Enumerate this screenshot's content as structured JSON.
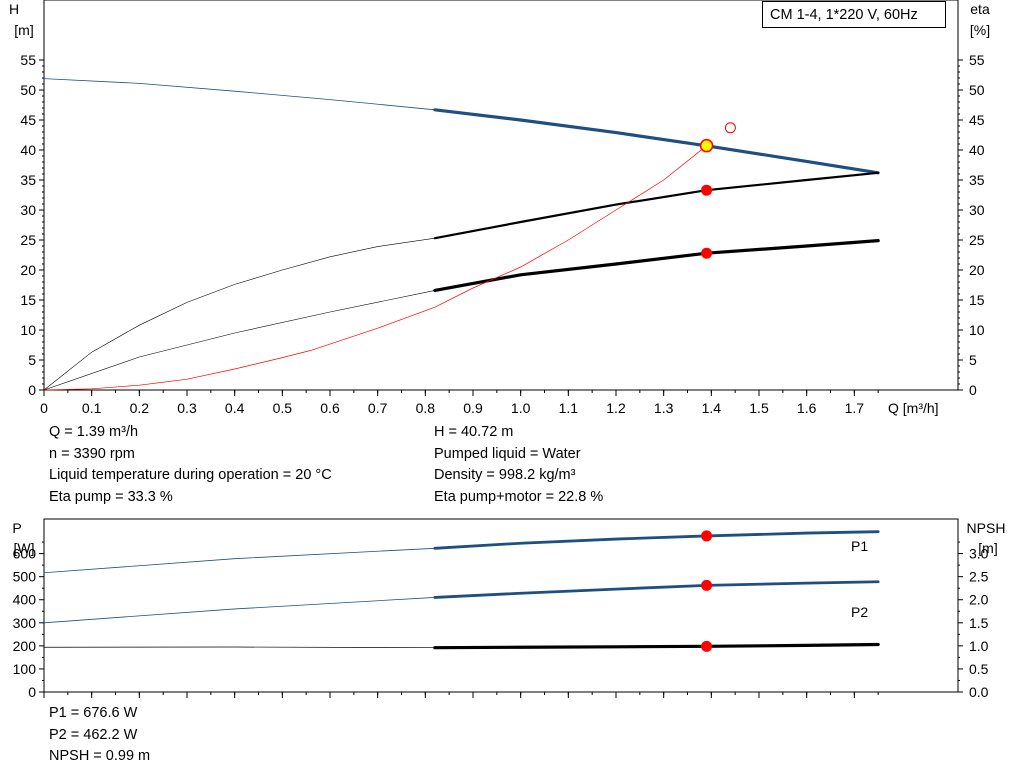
{
  "legend": {
    "title": "CM 1-4, 1*220 V, 60Hz"
  },
  "info_top": {
    "left": [
      "Q = 1.39 m³/h",
      "n = 3390 rpm",
      "Liquid temperature during operation = 20 °C",
      "Eta pump = 33.3 %"
    ],
    "right": [
      "H = 40.72 m",
      "Pumped liquid = Water",
      "Density = 998.2 kg/m³",
      "Eta pump+motor = 22.8 %"
    ]
  },
  "info_bottom": [
    "P1 = 676.6 W",
    "P2 = 462.2 W",
    "NPSH = 0.99 m"
  ],
  "chart_data": [
    {
      "type": "line",
      "axes": {
        "left": {
          "label_1": "H",
          "label_2": "[m]",
          "range": [
            0,
            55
          ],
          "ticks": [
            "0",
            "5",
            "10",
            "15",
            "20",
            "25",
            "30",
            "35",
            "40",
            "45",
            "50",
            "55"
          ]
        },
        "right": {
          "label_1": "eta",
          "label_2": "[%]",
          "range": [
            0,
            55
          ],
          "ticks": [
            "0",
            "5",
            "10",
            "15",
            "20",
            "25",
            "30",
            "35",
            "40",
            "45",
            "50",
            "55"
          ]
        },
        "x": {
          "label": "Q [m³/h]",
          "range": [
            0,
            1.75
          ],
          "ticks": [
            "0",
            "0.1",
            "0.2",
            "0.3",
            "0.4",
            "0.5",
            "0.6",
            "0.7",
            "0.8",
            "0.9",
            "1.0",
            "1.1",
            "1.2",
            "1.3",
            "1.4",
            "1.5",
            "1.6",
            "1.7"
          ]
        }
      },
      "series": [
        {
          "key": "head",
          "color": "#1f4e82",
          "x": [
            0,
            0.2,
            0.4,
            0.6,
            0.82,
            1.0,
            1.2,
            1.39,
            1.6,
            1.75
          ],
          "y": [
            51.9,
            51.1,
            49.8,
            48.4,
            46.7,
            45.0,
            42.9,
            40.7,
            38.1,
            36.2
          ]
        },
        {
          "key": "eta_pump",
          "color": "#000000",
          "x": [
            0,
            0.1,
            0.2,
            0.3,
            0.4,
            0.5,
            0.6,
            0.7,
            0.82,
            1.0,
            1.2,
            1.39,
            1.6,
            1.75
          ],
          "y": [
            0,
            6.3,
            10.8,
            14.6,
            17.6,
            20.0,
            22.2,
            23.9,
            25.3,
            28.0,
            30.9,
            33.3,
            35.0,
            36.2
          ]
        },
        {
          "key": "eta_total",
          "color": "#000000",
          "x": [
            0,
            0.2,
            0.4,
            0.6,
            0.82,
            1.0,
            1.2,
            1.39,
            1.6,
            1.75
          ],
          "y": [
            0,
            5.5,
            9.5,
            13.0,
            16.6,
            19.2,
            21.0,
            22.8,
            24.0,
            24.9
          ]
        },
        {
          "key": "system",
          "color": "#ff0000",
          "x": [
            0,
            0.1,
            0.2,
            0.3,
            0.4,
            0.5,
            0.56,
            0.7,
            0.82,
            0.9,
            1.0,
            1.1,
            1.2,
            1.3,
            1.39
          ],
          "y": [
            0,
            0.2,
            0.8,
            1.8,
            3.5,
            5.4,
            6.6,
            10.3,
            13.8,
            17.0,
            20.5,
            25.0,
            30.0,
            35.0,
            40.7
          ]
        }
      ],
      "duty_points": [
        {
          "x": 1.39,
          "y": 40.72
        },
        {
          "x": 1.39,
          "y": 33.3
        },
        {
          "x": 1.39,
          "y": 22.8
        }
      ],
      "open_marker": {
        "x": 1.44,
        "y": 43.7
      }
    },
    {
      "type": "line",
      "axes": {
        "left": {
          "label_1": "P",
          "label_2": "[W]",
          "range": [
            0,
            750
          ],
          "ticks": [
            "0",
            "100",
            "200",
            "300",
            "400",
            "500",
            "600"
          ]
        },
        "right": {
          "label_1": "NPSH",
          "label_2": "[m]",
          "range": [
            0,
            3.75
          ],
          "ticks": [
            "0.0",
            "0.5",
            "1.0",
            "1.5",
            "2.0",
            "2.5",
            "3.0"
          ]
        },
        "x": {
          "range": [
            0,
            1.75
          ]
        }
      },
      "series": [
        {
          "key": "P1",
          "name": "P1",
          "color": "#1f4e82",
          "x": [
            0,
            0.4,
            0.82,
            1.0,
            1.2,
            1.39,
            1.6,
            1.75
          ],
          "y": [
            517,
            578,
            623,
            645,
            663,
            676.6,
            689,
            695
          ]
        },
        {
          "key": "P2",
          "name": "P2",
          "color": "#1f4e82",
          "x": [
            0,
            0.4,
            0.82,
            1.0,
            1.2,
            1.39,
            1.6,
            1.75
          ],
          "y": [
            300,
            360,
            410,
            428,
            446,
            462.2,
            472,
            478
          ]
        },
        {
          "key": "NPSH",
          "color": "#000000",
          "axis": "right",
          "x": [
            0,
            0.4,
            0.82,
            1.0,
            1.2,
            1.39,
            1.6,
            1.75
          ],
          "y": [
            0.97,
            0.975,
            0.96,
            0.97,
            0.98,
            0.99,
            1.01,
            1.03
          ]
        }
      ],
      "duty_points": [
        {
          "x": 1.39,
          "y": 676.6
        },
        {
          "x": 1.39,
          "y": 462.2
        },
        {
          "x": 1.39,
          "y": 198
        }
      ]
    }
  ]
}
